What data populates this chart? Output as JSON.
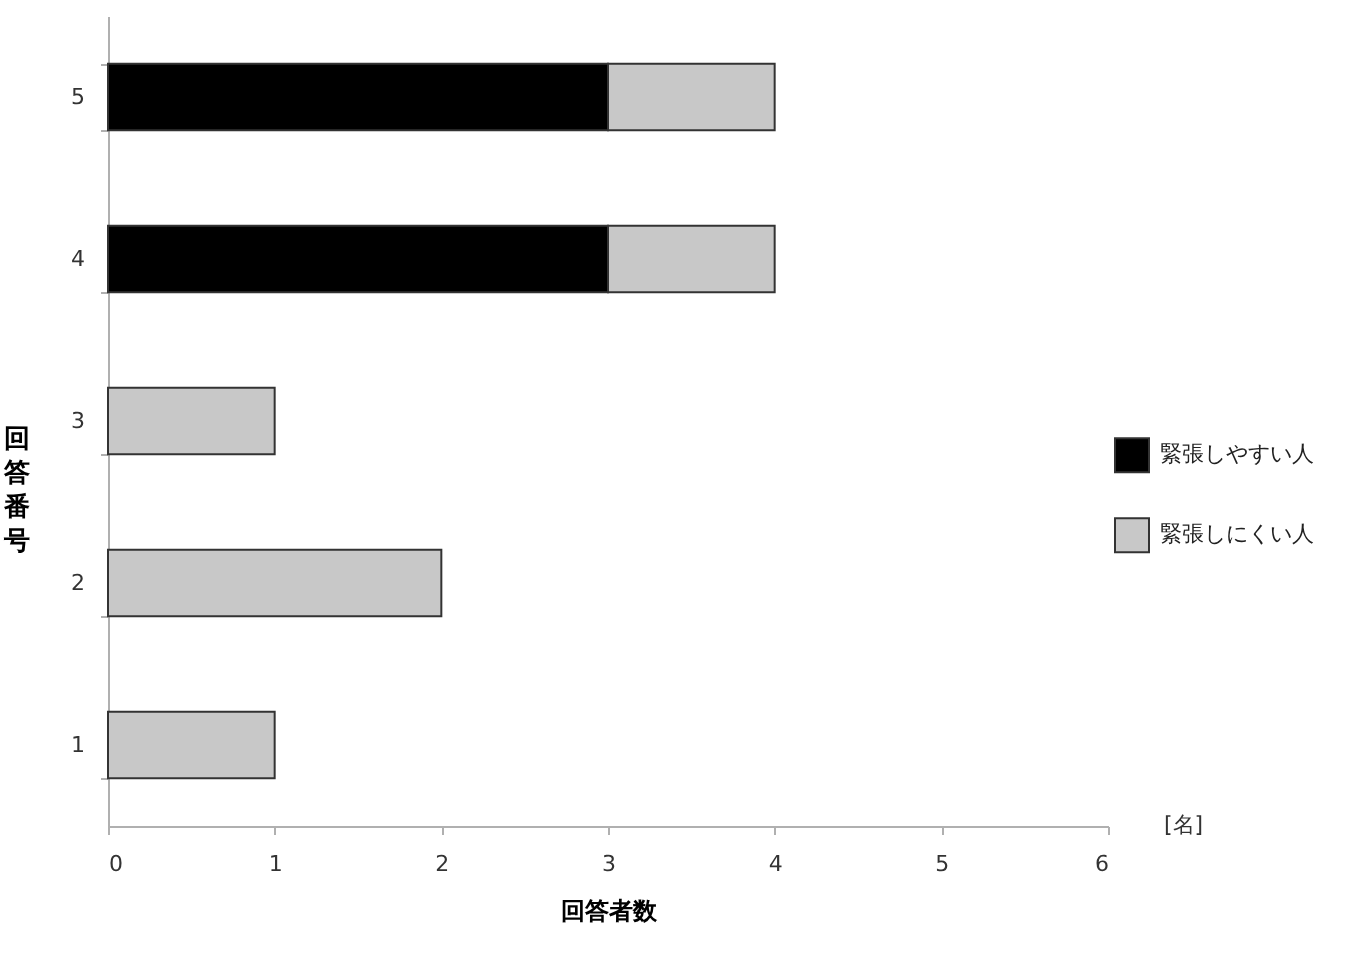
{
  "chart_data": {
    "type": "bar",
    "orientation": "horizontal",
    "stacked": true,
    "categories": [
      "5",
      "4",
      "3",
      "2",
      "1"
    ],
    "series": [
      {
        "name": "緊張しやすい人",
        "color": "#000000",
        "values": [
          3,
          3,
          0,
          0,
          0
        ]
      },
      {
        "name": "緊張しにくい人",
        "color": "#c8c8c8",
        "values": [
          1,
          1,
          1,
          2,
          1
        ]
      }
    ],
    "xlim": [
      0,
      6
    ],
    "xticks": [
      0,
      1,
      2,
      3,
      4,
      5,
      6
    ],
    "xlabel": "回答者数",
    "ylabel": "回答番号",
    "annotations": [
      "[名]"
    ],
    "legend": "right"
  }
}
